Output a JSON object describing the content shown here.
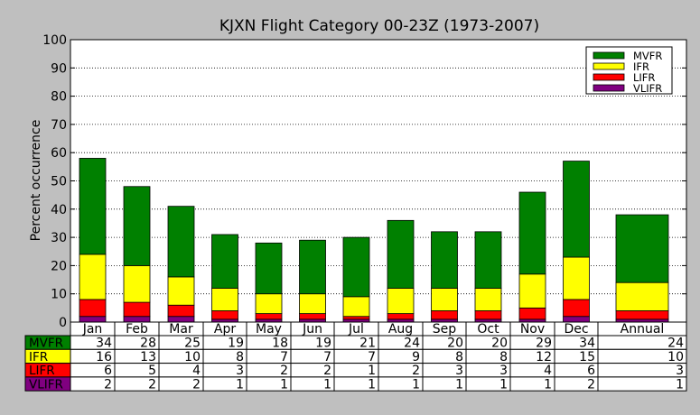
{
  "chart_data": {
    "type": "bar",
    "stacked": true,
    "title": "KJXN Flight Category 00-23Z (1973-2007)",
    "ylabel": "Percent occurrence",
    "xlabel": "",
    "ylim": [
      0,
      100
    ],
    "yticks": [
      0,
      10,
      20,
      30,
      40,
      50,
      60,
      70,
      80,
      90,
      100
    ],
    "grid": "horizontal dotted",
    "legend_position": "top-right",
    "categories": [
      "Jan",
      "Feb",
      "Mar",
      "Apr",
      "May",
      "Jun",
      "Jul",
      "Aug",
      "Sep",
      "Oct",
      "Nov",
      "Dec",
      "Annual"
    ],
    "series": [
      {
        "name": "VLIFR",
        "color": "#800080",
        "values": [
          2,
          2,
          2,
          1,
          1,
          1,
          1,
          1,
          1,
          1,
          1,
          2,
          1
        ]
      },
      {
        "name": "LIFR",
        "color": "#ff0000",
        "values": [
          6,
          5,
          4,
          3,
          2,
          2,
          1,
          2,
          3,
          3,
          4,
          6,
          3
        ]
      },
      {
        "name": "IFR",
        "color": "#ffff00",
        "values": [
          16,
          13,
          10,
          8,
          7,
          7,
          7,
          9,
          8,
          8,
          12,
          15,
          10
        ]
      },
      {
        "name": "MVFR",
        "color": "#008000",
        "values": [
          34,
          28,
          25,
          19,
          18,
          19,
          21,
          24,
          20,
          20,
          29,
          34,
          24
        ]
      }
    ],
    "table_rows": [
      "MVFR",
      "IFR",
      "LIFR",
      "VLIFR"
    ],
    "legend_order": [
      "MVFR",
      "IFR",
      "LIFR",
      "VLIFR"
    ]
  }
}
